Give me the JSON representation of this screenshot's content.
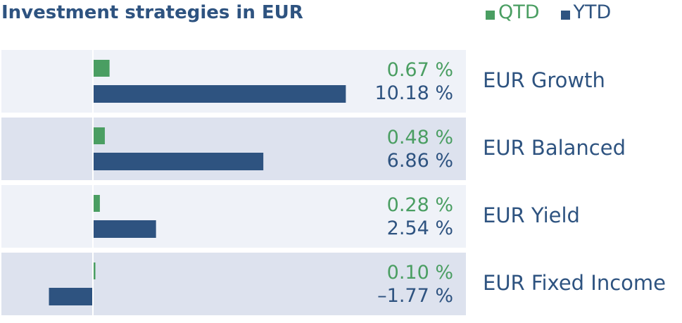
{
  "title": "Investment strategies in EUR",
  "legend": [
    {
      "label": "QTD",
      "color": "#4a9e62"
    },
    {
      "label": "YTD",
      "color": "#2e5380"
    }
  ],
  "colors": {
    "qtd": "#4a9e62",
    "ytd": "#2e5380",
    "text": "#2e5380",
    "row_light": "#eff2f8",
    "row_dark": "#dde2ee",
    "axis": "#ffffff"
  },
  "chart_data": {
    "type": "bar",
    "orientation": "horizontal",
    "title": "Investment strategies in EUR",
    "categories": [
      "EUR Growth",
      "EUR Balanced",
      "EUR Yield",
      "EUR Fixed Income"
    ],
    "series": [
      {
        "name": "QTD",
        "values": [
          0.67,
          0.48,
          0.28,
          0.1
        ],
        "labels": [
          "0.67 %",
          "0.48 %",
          "0.28 %",
          "0.10 %"
        ]
      },
      {
        "name": "YTD",
        "values": [
          10.18,
          6.86,
          2.54,
          -1.77
        ],
        "labels": [
          "10.18 %",
          "6.86 %",
          "2.54 %",
          "–1.77 %"
        ]
      }
    ],
    "unit": "%",
    "legend_position": "top-right",
    "grid": false
  }
}
